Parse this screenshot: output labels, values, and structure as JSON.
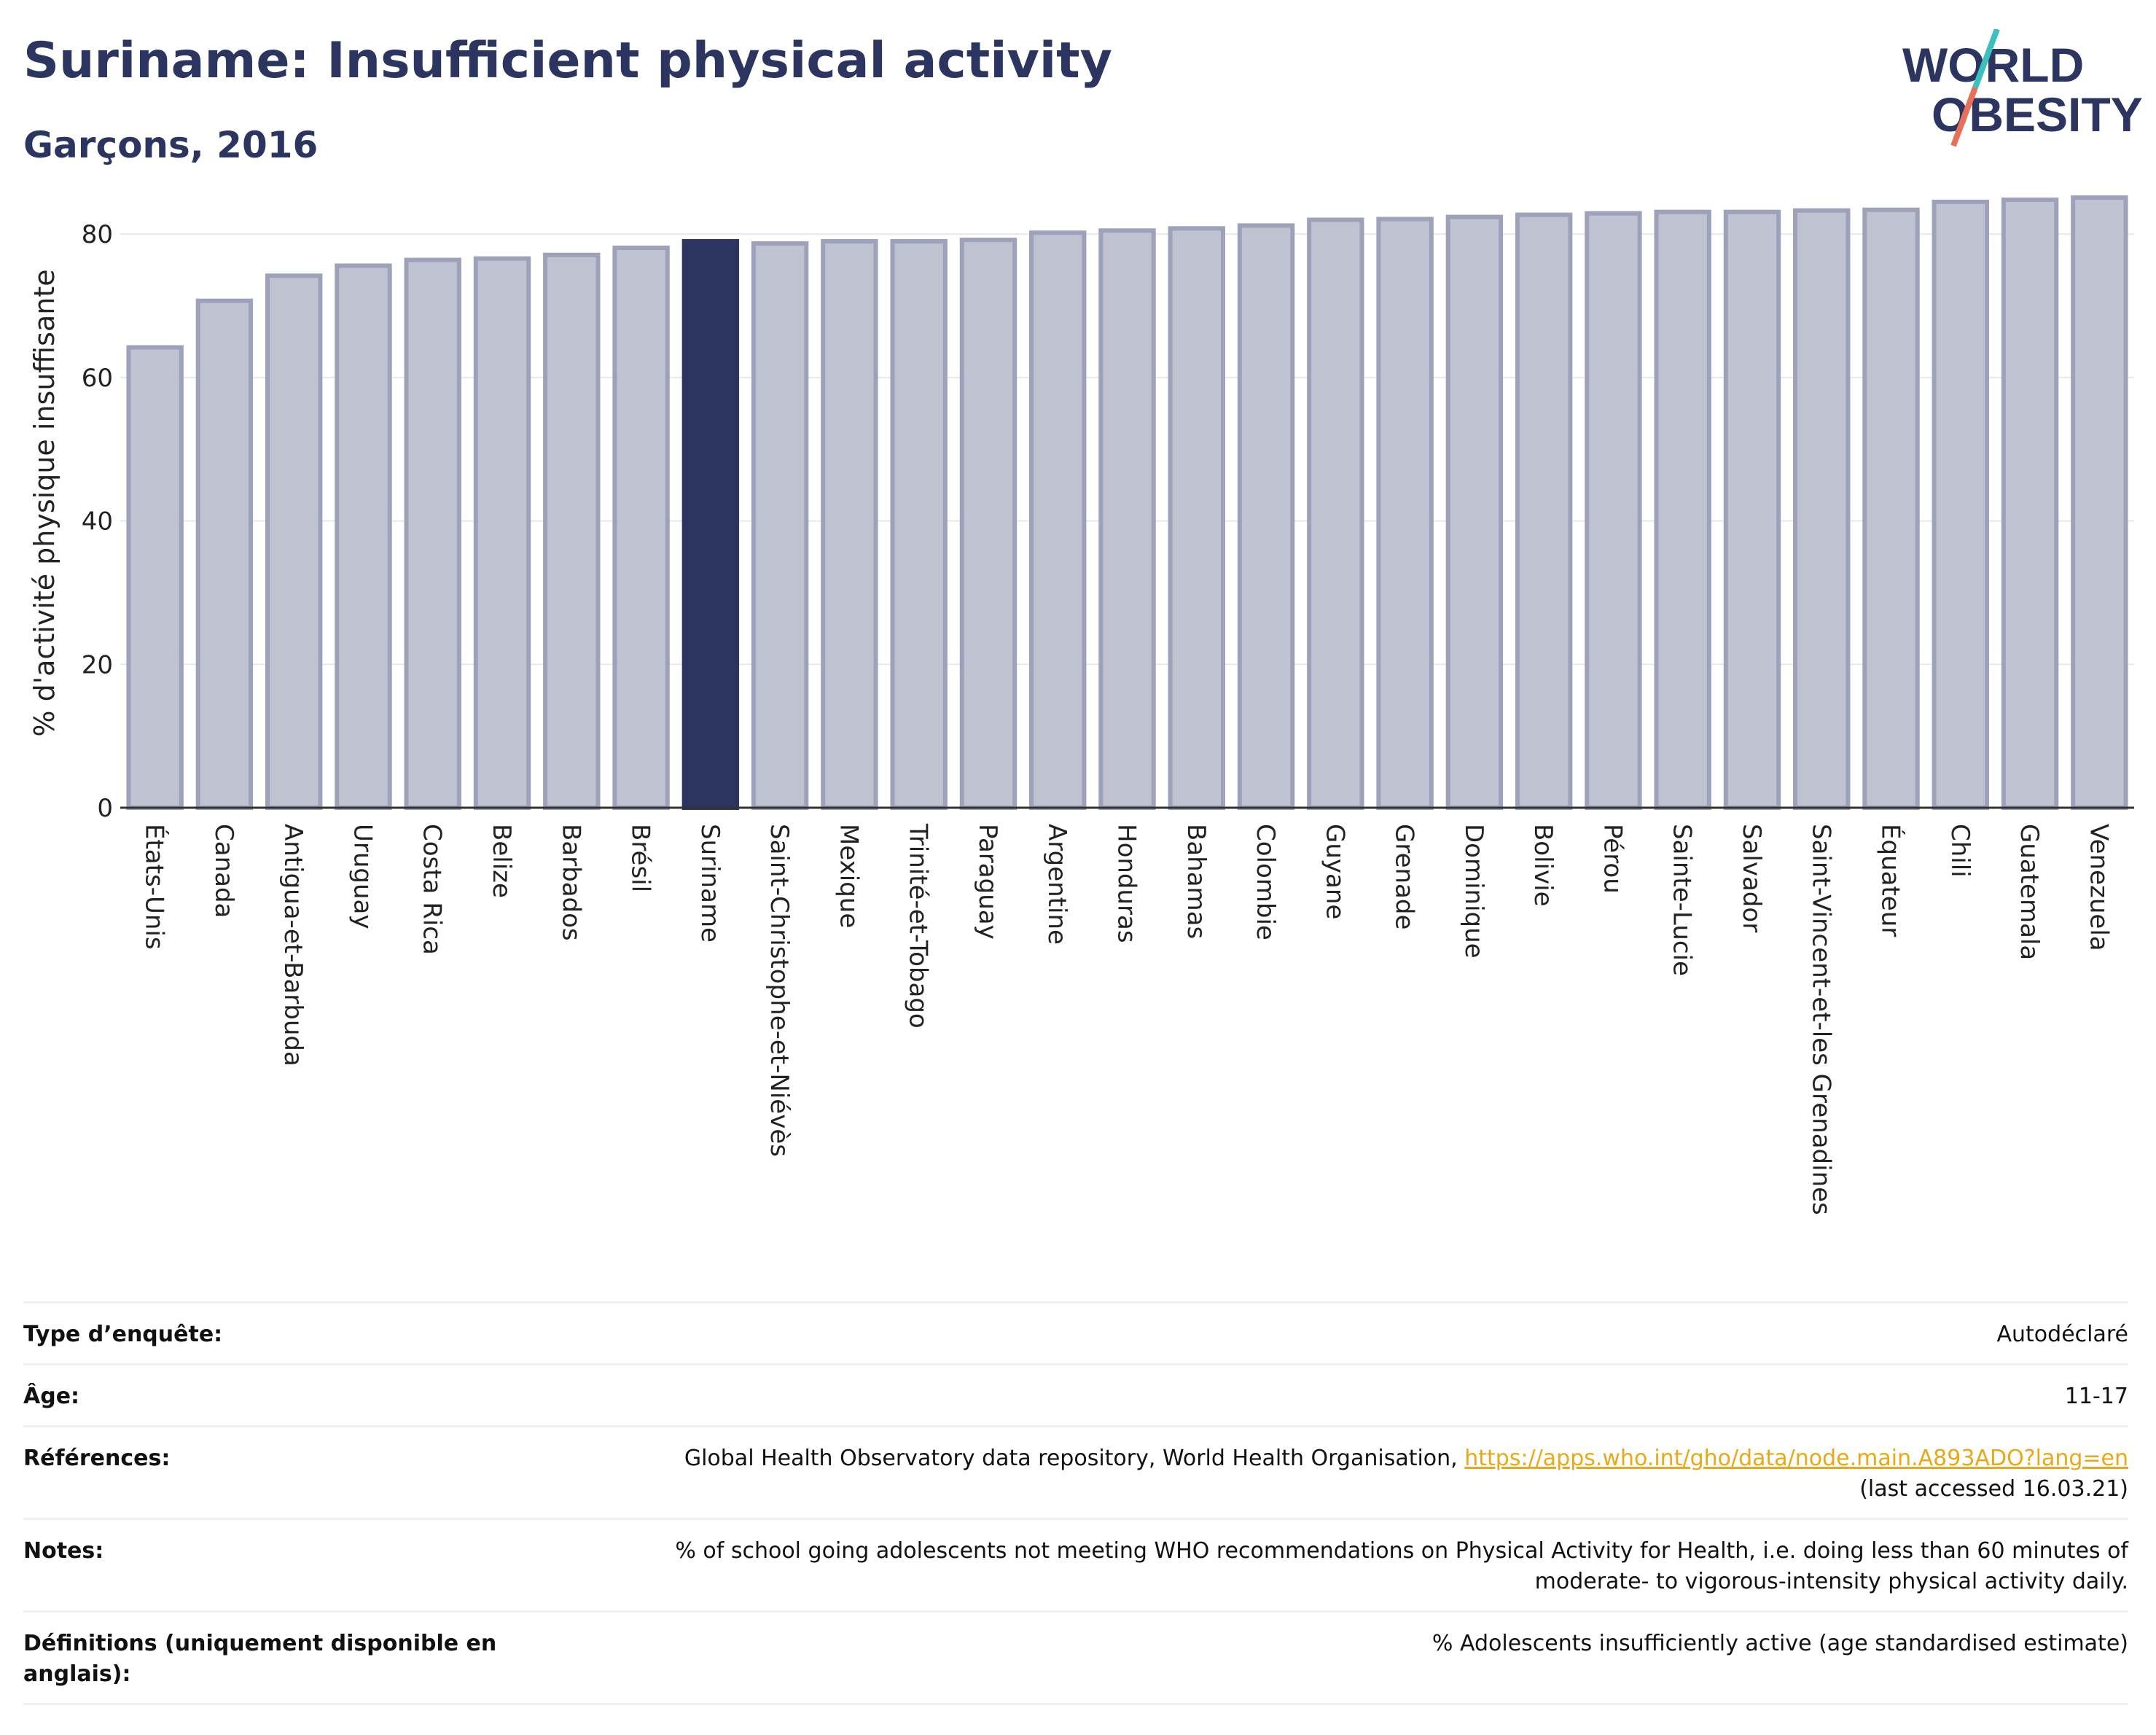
{
  "header": {
    "title": "Suriname: Insufficient physical activity",
    "subtitle": "Garçons, 2016",
    "logo_line1": "WORLD",
    "logo_line2": "OBESITY"
  },
  "colors": {
    "highlight": "#2b3560",
    "bar_fill": "#bfc2d0",
    "bar_stroke": "#9da2ba",
    "title": "#2b3560",
    "link": "#e8a817",
    "logo_teal": "#3cbfbf",
    "logo_coral": "#e8705a"
  },
  "chart_data": {
    "type": "bar",
    "ylabel": "% d'activité physique insuffisante",
    "xlabel": "",
    "ylim": [
      0,
      85
    ],
    "yticks": [
      0,
      20,
      40,
      60,
      80
    ],
    "grid": true,
    "highlight": "Suriname",
    "categories": [
      "États-Unis",
      "Canada",
      "Antigua-et-Barbuda",
      "Uruguay",
      "Costa Rica",
      "Belize",
      "Barbados",
      "Brésil",
      "Suriname",
      "Saint-Christophe-et-Niévès",
      "Mexique",
      "Trinité-et-Tobago",
      "Paraguay",
      "Argentine",
      "Honduras",
      "Bahamas",
      "Colombie",
      "Guyane",
      "Grenade",
      "Dominique",
      "Bolivie",
      "Pérou",
      "Sainte-Lucie",
      "Salvador",
      "Saint-Vincent-et-les Grenadines",
      "Équateur",
      "Chili",
      "Guatemala",
      "Venezuela"
    ],
    "values": [
      64.2,
      70.7,
      74.2,
      75.6,
      76.4,
      76.6,
      77.1,
      78.1,
      79.0,
      78.7,
      79.0,
      79.0,
      79.2,
      80.2,
      80.5,
      80.8,
      81.2,
      82.0,
      82.1,
      82.4,
      82.7,
      82.9,
      83.1,
      83.1,
      83.3,
      83.4,
      84.5,
      84.8,
      85.1
    ]
  },
  "meta": {
    "rows": [
      {
        "label": "Type d’enquête:",
        "value": "Autodéclaré"
      },
      {
        "label": "Âge:",
        "value": "11-17"
      },
      {
        "label": "Références:",
        "value": "Global Health Observatory data repository, World Health Organisation,",
        "link": "https://apps.who.int/gho/data/node.main.A893ADO?lang=en",
        "value2": "(last accessed 16.03.21)"
      },
      {
        "label": "Notes:",
        "value": "% of school going adolescents not meeting WHO recommendations on Physical Activity for Health, i.e. doing less than 60 minutes of",
        "value2": "moderate- to vigorous-intensity physical activity daily."
      },
      {
        "label": "Définitions (uniquement disponible en anglais):",
        "value": "% Adolescents insufficiently active (age standardised estimate)"
      }
    ]
  }
}
